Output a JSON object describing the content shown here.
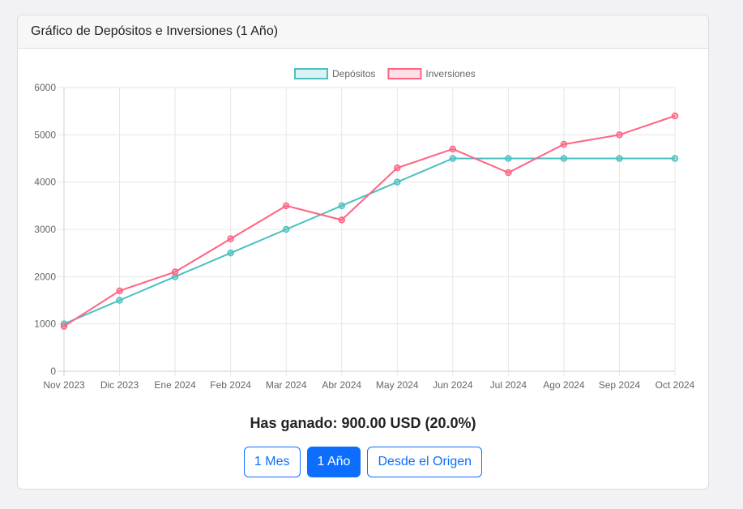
{
  "card": {
    "title": "Gráfico de Depósitos e Inversiones (1 Año)"
  },
  "chart_data": {
    "type": "line",
    "x": [
      "Nov 2023",
      "Dic 2023",
      "Ene 2024",
      "Feb 2024",
      "Mar 2024",
      "Abr 2024",
      "May 2024",
      "Jun 2024",
      "Jul 2024",
      "Ago 2024",
      "Sep 2024",
      "Oct 2024"
    ],
    "series": [
      {
        "name": "Depósitos",
        "color": "#4bc0c0",
        "values": [
          1000,
          1500,
          2000,
          2500,
          3000,
          3500,
          4000,
          4500,
          4500,
          4500,
          4500,
          4500
        ]
      },
      {
        "name": "Inversiones",
        "color": "#ff6384",
        "values": [
          950,
          1700,
          2100,
          2800,
          3500,
          3200,
          4300,
          4700,
          4200,
          4800,
          5000,
          5400
        ]
      }
    ],
    "ylim": [
      0,
      6000
    ],
    "yticks": [
      "0",
      "1000",
      "2000",
      "3000",
      "4000",
      "5000",
      "6000"
    ],
    "grid": true,
    "legend": "top-center"
  },
  "summary": {
    "text": "Has ganado: 900.00 USD (20.0%)"
  },
  "buttons": [
    {
      "label": "1 Mes",
      "active": false
    },
    {
      "label": "1 Año",
      "active": true
    },
    {
      "label": "Desde el Origen",
      "active": false
    }
  ]
}
